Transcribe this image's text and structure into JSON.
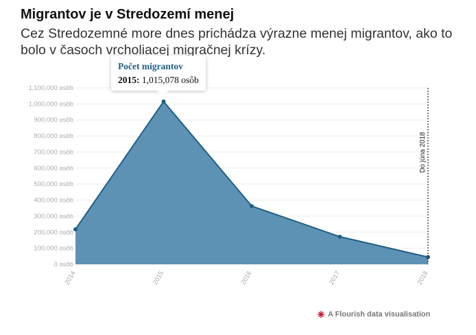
{
  "header": {
    "title": "Migrantov je v Stredozemí menej",
    "subtitle": "Cez Stredozemné more dnes prichádza výrazne menej migrantov, ako to bolo v časoch vrcholiacej migračnej krízy."
  },
  "tooltip": {
    "title": "Počet migrantov",
    "year": "2015:",
    "value": "1,015,078 osôb"
  },
  "footer": {
    "text": "A Flourish data visualisation",
    "icon": "flourish-icon"
  },
  "colors": {
    "area_fill": "#5e92b5",
    "line": "#1f5f86",
    "grid": "#eeeeee",
    "tooltip_title": "#1f5f86",
    "flourish": "#cc2233"
  },
  "chart_data": {
    "type": "area",
    "x": [
      "2014",
      "2015",
      "2016",
      "2017",
      "2018"
    ],
    "series": [
      {
        "name": "Počet migrantov",
        "values": [
          218000,
          1015078,
          363000,
          172000,
          45000
        ]
      }
    ],
    "ylim": [
      0,
      1100000
    ],
    "y_ticks": [
      {
        "value": 0,
        "label": "0 osôb"
      },
      {
        "value": 100000,
        "label": "100,000 osôb"
      },
      {
        "value": 200000,
        "label": "200,000 osôb"
      },
      {
        "value": 300000,
        "label": "300,000 osôb"
      },
      {
        "value": 400000,
        "label": "400,000 osôb"
      },
      {
        "value": 500000,
        "label": "500,000 osôb"
      },
      {
        "value": 600000,
        "label": "600,000 osôb"
      },
      {
        "value": 700000,
        "label": "700,000 osôb"
      },
      {
        "value": 800000,
        "label": "800,000 osôb"
      },
      {
        "value": 900000,
        "label": "900,000 osôb"
      },
      {
        "value": 1000000,
        "label": "1,000,000 osôb"
      },
      {
        "value": 1100000,
        "label": "1,100,000 osôb"
      }
    ],
    "annotation": {
      "x": "2018",
      "text": "Do júna 2018"
    },
    "grid": true,
    "legend": "none"
  }
}
